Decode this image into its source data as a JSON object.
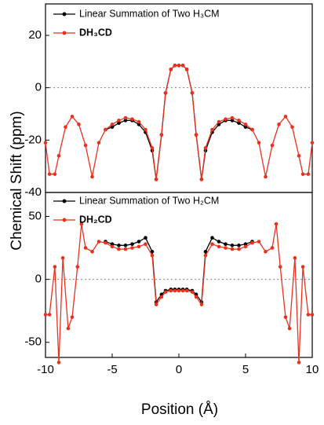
{
  "chart_data": [
    {
      "type": "line",
      "ylabel": "Chemical Shift (ppm)",
      "xlim": [
        -10,
        10
      ],
      "ylim": [
        -40,
        32
      ],
      "yticks": [
        -40,
        -20,
        0,
        20
      ],
      "zero_line": true,
      "series": [
        {
          "name": "Linear Summation of Two H₃CM",
          "color": "#000000",
          "x": [
            -5.5,
            -5,
            -4.5,
            -4,
            -3.5,
            -3,
            -2.5,
            -2,
            -1.7,
            -1.3,
            -1,
            -0.6,
            -0.3,
            0,
            0.3,
            0.6,
            1,
            1.3,
            1.7,
            2,
            2.5,
            3,
            3.5,
            4,
            4.5,
            5,
            5.5
          ],
          "values": [
            -16,
            -15,
            -13.5,
            -12.5,
            -12.5,
            -14,
            -17,
            -24,
            -35,
            -18,
            -2,
            7,
            8.5,
            8.5,
            8.5,
            7,
            -2,
            -18,
            -35,
            -24,
            -17,
            -14,
            -12.5,
            -12.5,
            -13.5,
            -15,
            -16
          ]
        },
        {
          "name": "DH₃CD",
          "color": "#e8321e",
          "x": [
            -10,
            -9.7,
            -9.3,
            -9,
            -8.5,
            -8,
            -7.5,
            -7,
            -6.5,
            -6,
            -5.5,
            -5,
            -4.5,
            -4,
            -3.5,
            -3,
            -2.5,
            -2,
            -1.7,
            -1.3,
            -1,
            -0.6,
            -0.3,
            0,
            0.3,
            0.6,
            1,
            1.3,
            1.7,
            2,
            2.5,
            3,
            3.5,
            4,
            4.5,
            5,
            5.5,
            6,
            6.5,
            7,
            7.5,
            8,
            8.5,
            9,
            9.3,
            9.7,
            10
          ],
          "values": [
            -21,
            -33,
            -33,
            -26,
            -15,
            -11,
            -14,
            -22,
            -34,
            -21,
            -16,
            -14,
            -12.5,
            -11.5,
            -12,
            -13,
            -16,
            -23,
            -35,
            -18,
            -2,
            7,
            8.5,
            8.5,
            8.5,
            7,
            -2,
            -18,
            -35,
            -23,
            -16,
            -13,
            -12,
            -11.5,
            -12.5,
            -14,
            -16,
            -21,
            -34,
            -22,
            -14,
            -11,
            -15,
            -26,
            -33,
            -33,
            -21
          ]
        }
      ]
    },
    {
      "type": "line",
      "xlabel": "Position (Å)",
      "xlim": [
        -10,
        10
      ],
      "xticks": [
        -10,
        -5,
        0,
        5,
        10
      ],
      "ylim": [
        -62,
        69
      ],
      "yticks": [
        -50,
        0,
        50
      ],
      "zero_line": true,
      "series": [
        {
          "name": "Linear Summation of Two H₂CM",
          "color": "#000000",
          "x": [
            -5.5,
            -5,
            -4.5,
            -4,
            -3.5,
            -3,
            -2.5,
            -2,
            -1.7,
            -1.3,
            -1,
            -0.6,
            -0.3,
            0,
            0.3,
            0.6,
            1,
            1.3,
            1.7,
            2,
            2.5,
            3,
            3.5,
            4,
            4.5,
            5,
            5.5
          ],
          "values": [
            30,
            28,
            27,
            27,
            28,
            30,
            33,
            22,
            -18,
            -12,
            -9,
            -8,
            -8,
            -8,
            -8,
            -8,
            -9,
            -12,
            -18,
            22,
            33,
            30,
            28,
            27,
            27,
            28,
            30
          ]
        },
        {
          "name": "DH₂CD",
          "color": "#e8321e",
          "x": [
            -10,
            -9.7,
            -9.3,
            -9,
            -8.7,
            -8.3,
            -8,
            -7.6,
            -7.3,
            -7,
            -6.5,
            -6,
            -5.5,
            -5,
            -4.5,
            -4,
            -3.5,
            -3,
            -2.5,
            -2,
            -1.7,
            -1.3,
            -1,
            -0.6,
            -0.3,
            0,
            0.3,
            0.6,
            1,
            1.3,
            1.7,
            2,
            2.5,
            3,
            3.5,
            4,
            4.5,
            5,
            5.5,
            6,
            6.5,
            7,
            7.3,
            7.6,
            8,
            8.3,
            8.7,
            9,
            9.3,
            9.7,
            10
          ],
          "values": [
            -28,
            -28,
            10,
            -66,
            17,
            -39,
            -30,
            10,
            44,
            25,
            22,
            30,
            29,
            26,
            24,
            24,
            25,
            26,
            28,
            19,
            -20,
            -14,
            -10,
            -9,
            -9,
            -9,
            -9,
            -9,
            -10,
            -14,
            -20,
            19,
            28,
            26,
            25,
            24,
            24,
            26,
            29,
            30,
            22,
            25,
            44,
            10,
            -30,
            -39,
            17,
            -66,
            10,
            -28,
            -28
          ]
        }
      ]
    }
  ]
}
